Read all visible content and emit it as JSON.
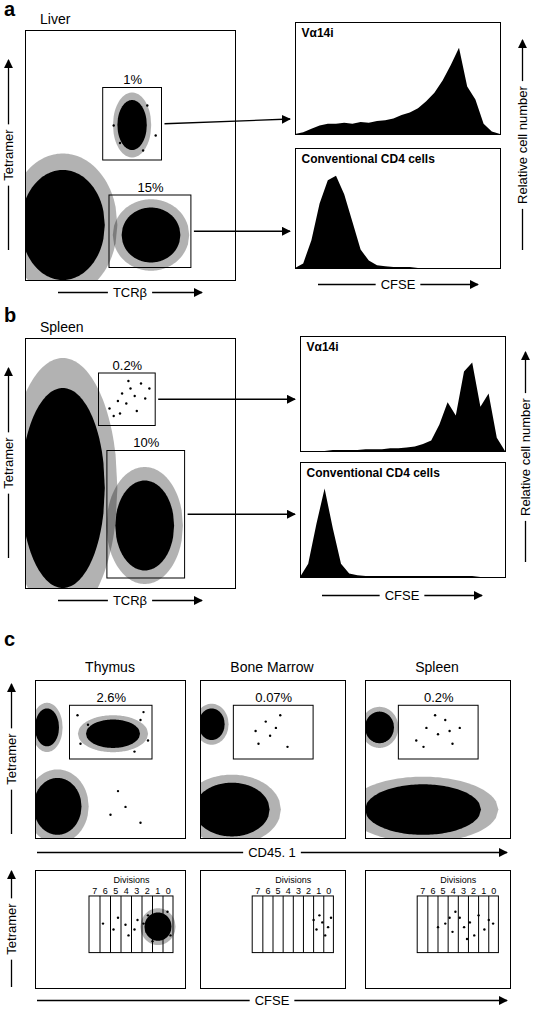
{
  "chart_data": [
    {
      "type": "scatter",
      "panel": "a",
      "xlabel": "TCRβ",
      "ylabel": "Tetramer",
      "xlim": [
        0,
        100
      ],
      "ylim": [
        0,
        100
      ],
      "tick_labels": false,
      "color": "black",
      "facets": [
        {
          "title": "Liver",
          "clusters": [
            {
              "x": 18,
              "y": 22,
              "rx": 20,
              "ry": 22
            },
            {
              "x": 60,
              "y": 18,
              "rx": 14,
              "ry": 11
            },
            {
              "x": 51,
              "y": 62,
              "rx": 7,
              "ry": 10
            }
          ],
          "points": [
            [
              45,
              55
            ],
            [
              58,
              70
            ],
            [
              50,
              68
            ],
            [
              62,
              58
            ],
            [
              42,
              62
            ],
            [
              56,
              52
            ]
          ],
          "gates": [
            {
              "x0": 37,
              "x1": 65,
              "y0": 48,
              "y1": 77,
              "value": 1,
              "value_label": "1%"
            },
            {
              "x0": 40,
              "x1": 79,
              "y0": 5,
              "y1": 34,
              "value": 15,
              "value_label": "15%"
            }
          ]
        }
      ]
    },
    {
      "type": "area",
      "xlabel": "CFSE",
      "ylabel": "Relative cell number",
      "xlim": [
        0,
        100
      ],
      "ylim": [
        0,
        130
      ],
      "tick_labels": false,
      "color": "black",
      "x": [
        0,
        4,
        8,
        12,
        16,
        20,
        24,
        28,
        32,
        36,
        40,
        44,
        48,
        52,
        56,
        60,
        64,
        68,
        72,
        76,
        80,
        84,
        88,
        92,
        96,
        100
      ],
      "series": [
        {
          "name": "Vα14i",
          "values": [
            0,
            2,
            6,
            10,
            12,
            12,
            13,
            12,
            14,
            13,
            15,
            16,
            18,
            22,
            25,
            30,
            38,
            48,
            62,
            80,
            100,
            55,
            40,
            12,
            3,
            0
          ]
        },
        {
          "name": "Conventional CD4 cells",
          "values": [
            0,
            5,
            30,
            70,
            95,
            100,
            80,
            50,
            20,
            8,
            3,
            2,
            1,
            1,
            1,
            0,
            0,
            0,
            0,
            0,
            0,
            0,
            0,
            0,
            0,
            0
          ]
        }
      ]
    },
    {
      "type": "scatter",
      "panel": "b",
      "xlabel": "TCRβ",
      "ylabel": "Tetramer",
      "xlim": [
        0,
        100
      ],
      "ylim": [
        0,
        100
      ],
      "tick_labels": false,
      "color": "black",
      "facets": [
        {
          "title": "Spleen",
          "clusters": [
            {
              "x": 18,
              "y": 40,
              "rx": 20,
              "ry": 40
            },
            {
              "x": 57,
              "y": 25,
              "rx": 14,
              "ry": 18
            }
          ],
          "points": [
            [
              40,
              72
            ],
            [
              44,
              75
            ],
            [
              46,
              78
            ],
            [
              48,
              74
            ],
            [
              50,
              80
            ],
            [
              52,
              77
            ],
            [
              55,
              82
            ],
            [
              42,
              69
            ],
            [
              57,
              76
            ],
            [
              53,
              71
            ],
            [
              49,
              83
            ],
            [
              45,
              70
            ],
            [
              59,
              80
            ]
          ],
          "gates": [
            {
              "x0": 35,
              "x1": 62,
              "y0": 65,
              "y1": 86,
              "value": 0.2,
              "value_label": "0.2%"
            },
            {
              "x0": 39,
              "x1": 76,
              "y0": 4,
              "y1": 55,
              "value": 10,
              "value_label": "10%"
            }
          ]
        }
      ]
    },
    {
      "type": "area",
      "xlabel": "CFSE",
      "ylabel": "Relative cell number",
      "xlim": [
        0,
        100
      ],
      "ylim": [
        0,
        130
      ],
      "tick_labels": false,
      "color": "black",
      "x": [
        0,
        4,
        8,
        12,
        16,
        20,
        24,
        28,
        32,
        36,
        40,
        44,
        48,
        52,
        56,
        60,
        64,
        68,
        72,
        76,
        80,
        84,
        88,
        92,
        96,
        100
      ],
      "series": [
        {
          "name": "Vα14i",
          "values": [
            0,
            0,
            0,
            0,
            1,
            1,
            1,
            1,
            2,
            2,
            2,
            3,
            3,
            4,
            5,
            8,
            12,
            30,
            55,
            40,
            90,
            100,
            50,
            65,
            15,
            0
          ]
        },
        {
          "name": "Conventional CD4 cells",
          "values": [
            0,
            15,
            60,
            100,
            55,
            15,
            4,
            2,
            1,
            1,
            1,
            1,
            1,
            1,
            1,
            1,
            1,
            1,
            1,
            1,
            1,
            1,
            0,
            0,
            0,
            0
          ]
        }
      ]
    },
    {
      "type": "scatter",
      "panel": "c",
      "xlabel": "CD45. 1",
      "ylabel": "Tetramer",
      "xlim": [
        0,
        100
      ],
      "ylim": [
        0,
        100
      ],
      "tick_labels": false,
      "color": "black",
      "facets": [
        {
          "title": "Thymus",
          "clusters": [
            {
              "x": 8,
              "y": 70,
              "rx": 8,
              "ry": 12
            },
            {
              "x": 15,
              "y": 20,
              "rx": 16,
              "ry": 18
            },
            {
              "x": 52,
              "y": 66,
              "rx": 18,
              "ry": 9
            }
          ],
          "points": [
            [
              30,
              60
            ],
            [
              35,
              72
            ],
            [
              70,
              75
            ],
            [
              75,
              62
            ],
            [
              28,
              78
            ],
            [
              66,
              55
            ],
            [
              72,
              80
            ],
            [
              50,
              15
            ],
            [
              60,
              20
            ],
            [
              70,
              10
            ],
            [
              55,
              30
            ]
          ],
          "gates": [
            {
              "x0": 23,
              "x1": 78,
              "y0": 50,
              "y1": 84,
              "value": 2.6,
              "value_label": "2.6%"
            }
          ]
        },
        {
          "title": "Bone Marrow",
          "clusters": [
            {
              "x": 8,
              "y": 72,
              "rx": 9,
              "ry": 10
            },
            {
              "x": 22,
              "y": 18,
              "rx": 26,
              "ry": 17
            }
          ],
          "points": [
            [
              40,
              60
            ],
            [
              48,
              65
            ],
            [
              52,
              70
            ],
            [
              45,
              74
            ],
            [
              60,
              58
            ],
            [
              55,
              78
            ],
            [
              38,
              68
            ]
          ],
          "gates": [
            {
              "x0": 23,
              "x1": 78,
              "y0": 50,
              "y1": 84,
              "value": 0.07,
              "value_label": "0.07%"
            }
          ]
        },
        {
          "title": "Spleen",
          "clusters": [
            {
              "x": 10,
              "y": 70,
              "rx": 10,
              "ry": 10
            },
            {
              "x": 40,
              "y": 18,
              "rx": 40,
              "ry": 16
            }
          ],
          "points": [
            [
              35,
              62
            ],
            [
              42,
              70
            ],
            [
              50,
              66
            ],
            [
              55,
              75
            ],
            [
              60,
              60
            ],
            [
              48,
              78
            ],
            [
              65,
              70
            ],
            [
              40,
              58
            ],
            [
              58,
              68
            ]
          ],
          "gates": [
            {
              "x0": 23,
              "x1": 78,
              "y0": 50,
              "y1": 84,
              "value": 0.2,
              "value_label": "0.2%"
            }
          ]
        }
      ]
    },
    {
      "type": "scatter",
      "xlabel": "CFSE",
      "ylabel": "Tetramer",
      "xlim": [
        0,
        100
      ],
      "ylim": [
        0,
        100
      ],
      "tick_labels": false,
      "color": "black",
      "facets": [
        {
          "clusters": [
            {
              "x": 82,
              "y": 52,
              "rx": 9,
              "ry": 12
            }
          ],
          "points": [
            [
              72,
              55
            ],
            [
              74,
              48
            ],
            [
              75,
              62
            ],
            [
              66,
              50
            ],
            [
              68,
              58
            ],
            [
              60,
              54
            ],
            [
              62,
              45
            ],
            [
              55,
              60
            ],
            [
              52,
              50
            ],
            [
              45,
              55
            ],
            [
              78,
              40
            ],
            [
              88,
              65
            ],
            [
              90,
              45
            ]
          ],
          "divisions": {
            "title": "Divisions",
            "bounds": [
              36,
              43,
              50,
              57,
              64,
              71,
              78,
              85,
              92
            ],
            "values": [
              7,
              6,
              5,
              4,
              3,
              2,
              1,
              0
            ],
            "y0": 30,
            "y1": 78
          }
        },
        {
          "points": [
            [
              80,
              50
            ],
            [
              84,
              56
            ],
            [
              86,
              45
            ],
            [
              82,
              62
            ],
            [
              88,
              52
            ],
            [
              78,
              58
            ],
            [
              90,
              60
            ]
          ],
          "divisions": {
            "title": "Divisions",
            "bounds": [
              36,
              43,
              50,
              57,
              64,
              71,
              78,
              85,
              92
            ],
            "values": [
              7,
              6,
              5,
              4,
              3,
              2,
              1,
              0
            ],
            "y0": 30,
            "y1": 78
          }
        },
        {
          "points": [
            [
              55,
              55
            ],
            [
              60,
              48
            ],
            [
              65,
              60
            ],
            [
              68,
              52
            ],
            [
              72,
              56
            ],
            [
              75,
              45
            ],
            [
              78,
              62
            ],
            [
              82,
              50
            ],
            [
              85,
              58
            ],
            [
              50,
              52
            ],
            [
              62,
              65
            ],
            [
              70,
              42
            ],
            [
              88,
              55
            ],
            [
              58,
              60
            ]
          ],
          "divisions": {
            "title": "Divisions",
            "bounds": [
              36,
              43,
              50,
              57,
              64,
              71,
              78,
              85,
              92
            ],
            "values": [
              7,
              6,
              5,
              4,
              3,
              2,
              1,
              0
            ],
            "y0": 30,
            "y1": 78
          }
        }
      ]
    }
  ]
}
